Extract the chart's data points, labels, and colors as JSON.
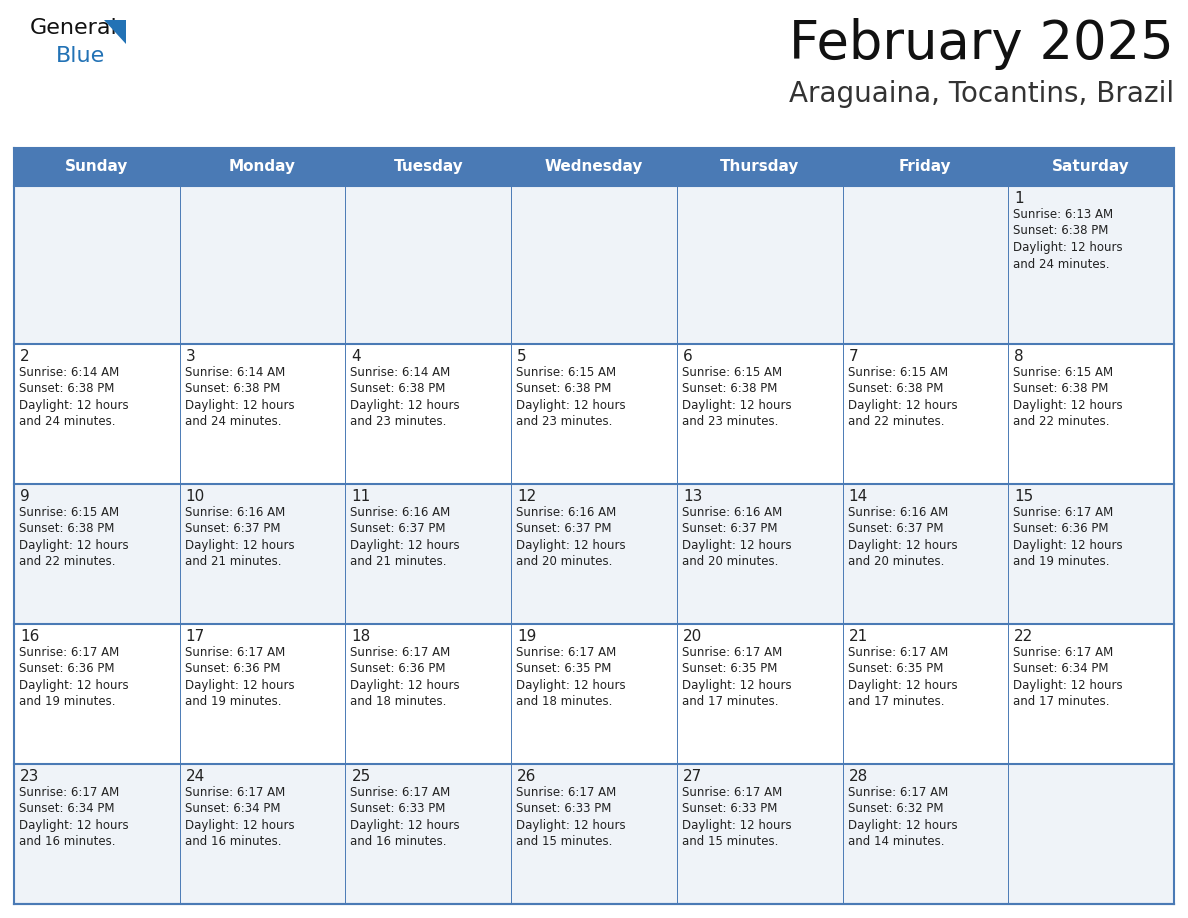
{
  "title": "February 2025",
  "subtitle": "Araguaina, Tocantins, Brazil",
  "header_bg": "#4a7ab5",
  "header_text_color": "#ffffff",
  "row_bg_alt": "#eff3f8",
  "row_bg_white": "#ffffff",
  "border_color": "#4a7ab5",
  "text_color": "#222222",
  "day_headers": [
    "Sunday",
    "Monday",
    "Tuesday",
    "Wednesday",
    "Thursday",
    "Friday",
    "Saturday"
  ],
  "weeks": [
    [
      {
        "day": "",
        "info": ""
      },
      {
        "day": "",
        "info": ""
      },
      {
        "day": "",
        "info": ""
      },
      {
        "day": "",
        "info": ""
      },
      {
        "day": "",
        "info": ""
      },
      {
        "day": "",
        "info": ""
      },
      {
        "day": "1",
        "info": "Sunrise: 6:13 AM\nSunset: 6:38 PM\nDaylight: 12 hours\nand 24 minutes."
      }
    ],
    [
      {
        "day": "2",
        "info": "Sunrise: 6:14 AM\nSunset: 6:38 PM\nDaylight: 12 hours\nand 24 minutes."
      },
      {
        "day": "3",
        "info": "Sunrise: 6:14 AM\nSunset: 6:38 PM\nDaylight: 12 hours\nand 24 minutes."
      },
      {
        "day": "4",
        "info": "Sunrise: 6:14 AM\nSunset: 6:38 PM\nDaylight: 12 hours\nand 23 minutes."
      },
      {
        "day": "5",
        "info": "Sunrise: 6:15 AM\nSunset: 6:38 PM\nDaylight: 12 hours\nand 23 minutes."
      },
      {
        "day": "6",
        "info": "Sunrise: 6:15 AM\nSunset: 6:38 PM\nDaylight: 12 hours\nand 23 minutes."
      },
      {
        "day": "7",
        "info": "Sunrise: 6:15 AM\nSunset: 6:38 PM\nDaylight: 12 hours\nand 22 minutes."
      },
      {
        "day": "8",
        "info": "Sunrise: 6:15 AM\nSunset: 6:38 PM\nDaylight: 12 hours\nand 22 minutes."
      }
    ],
    [
      {
        "day": "9",
        "info": "Sunrise: 6:15 AM\nSunset: 6:38 PM\nDaylight: 12 hours\nand 22 minutes."
      },
      {
        "day": "10",
        "info": "Sunrise: 6:16 AM\nSunset: 6:37 PM\nDaylight: 12 hours\nand 21 minutes."
      },
      {
        "day": "11",
        "info": "Sunrise: 6:16 AM\nSunset: 6:37 PM\nDaylight: 12 hours\nand 21 minutes."
      },
      {
        "day": "12",
        "info": "Sunrise: 6:16 AM\nSunset: 6:37 PM\nDaylight: 12 hours\nand 20 minutes."
      },
      {
        "day": "13",
        "info": "Sunrise: 6:16 AM\nSunset: 6:37 PM\nDaylight: 12 hours\nand 20 minutes."
      },
      {
        "day": "14",
        "info": "Sunrise: 6:16 AM\nSunset: 6:37 PM\nDaylight: 12 hours\nand 20 minutes."
      },
      {
        "day": "15",
        "info": "Sunrise: 6:17 AM\nSunset: 6:36 PM\nDaylight: 12 hours\nand 19 minutes."
      }
    ],
    [
      {
        "day": "16",
        "info": "Sunrise: 6:17 AM\nSunset: 6:36 PM\nDaylight: 12 hours\nand 19 minutes."
      },
      {
        "day": "17",
        "info": "Sunrise: 6:17 AM\nSunset: 6:36 PM\nDaylight: 12 hours\nand 19 minutes."
      },
      {
        "day": "18",
        "info": "Sunrise: 6:17 AM\nSunset: 6:36 PM\nDaylight: 12 hours\nand 18 minutes."
      },
      {
        "day": "19",
        "info": "Sunrise: 6:17 AM\nSunset: 6:35 PM\nDaylight: 12 hours\nand 18 minutes."
      },
      {
        "day": "20",
        "info": "Sunrise: 6:17 AM\nSunset: 6:35 PM\nDaylight: 12 hours\nand 17 minutes."
      },
      {
        "day": "21",
        "info": "Sunrise: 6:17 AM\nSunset: 6:35 PM\nDaylight: 12 hours\nand 17 minutes."
      },
      {
        "day": "22",
        "info": "Sunrise: 6:17 AM\nSunset: 6:34 PM\nDaylight: 12 hours\nand 17 minutes."
      }
    ],
    [
      {
        "day": "23",
        "info": "Sunrise: 6:17 AM\nSunset: 6:34 PM\nDaylight: 12 hours\nand 16 minutes."
      },
      {
        "day": "24",
        "info": "Sunrise: 6:17 AM\nSunset: 6:34 PM\nDaylight: 12 hours\nand 16 minutes."
      },
      {
        "day": "25",
        "info": "Sunrise: 6:17 AM\nSunset: 6:33 PM\nDaylight: 12 hours\nand 16 minutes."
      },
      {
        "day": "26",
        "info": "Sunrise: 6:17 AM\nSunset: 6:33 PM\nDaylight: 12 hours\nand 15 minutes."
      },
      {
        "day": "27",
        "info": "Sunrise: 6:17 AM\nSunset: 6:33 PM\nDaylight: 12 hours\nand 15 minutes."
      },
      {
        "day": "28",
        "info": "Sunrise: 6:17 AM\nSunset: 6:32 PM\nDaylight: 12 hours\nand 14 minutes."
      },
      {
        "day": "",
        "info": ""
      }
    ]
  ],
  "title_fontsize": 38,
  "subtitle_fontsize": 20,
  "header_fontsize": 11,
  "day_num_fontsize": 11,
  "info_fontsize": 8.5
}
